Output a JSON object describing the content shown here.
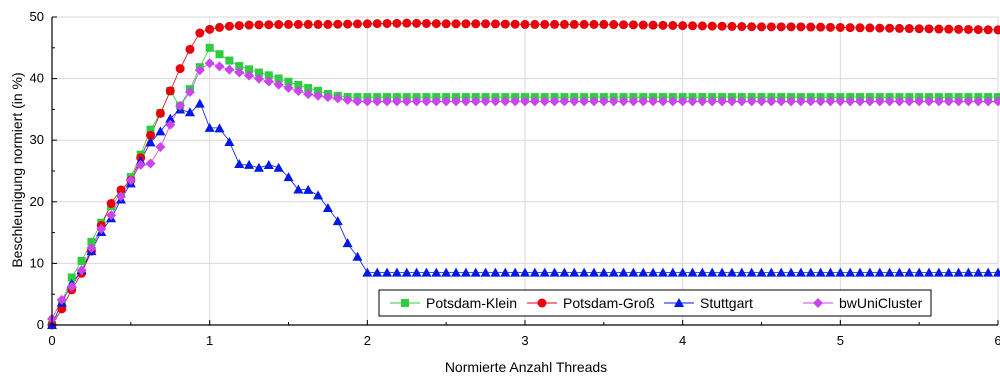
{
  "chart_data": {
    "type": "line",
    "xlabel": "Normierte Anzahl Threads",
    "ylabel": "Beschleunigung normiert (in %)",
    "xlim": [
      0,
      6
    ],
    "ylim": [
      0,
      50
    ],
    "x_ticks": [
      "0",
      "1",
      "2",
      "3",
      "4",
      "5",
      "6"
    ],
    "y_ticks": [
      "0",
      "10",
      "20",
      "30",
      "40",
      "50"
    ],
    "grid": true,
    "legend_position": "bottom-right",
    "series": [
      {
        "name": "Potsdam-Klein",
        "color": "#2ecc40",
        "marker": "square",
        "x": [
          0,
          0.06,
          0.12,
          0.19,
          0.25,
          0.31,
          0.38,
          0.44,
          0.5,
          0.56,
          0.62,
          0.69,
          0.75,
          0.81,
          0.88,
          0.94,
          1.0,
          1.06,
          1.12,
          1.19,
          1.25,
          1.31,
          1.38,
          1.44,
          1.5,
          1.56,
          1.62,
          1.69,
          1.75,
          1.81,
          1.88,
          1.94,
          2.0,
          2.25,
          2.5,
          2.75,
          3.0,
          3.25,
          3.5,
          3.75,
          4.0,
          4.25,
          4.5,
          4.75,
          5.0,
          5.25,
          5.5,
          5.75,
          6.0
        ],
        "y": [
          0,
          3.5,
          7.5,
          10.5,
          13.5,
          16.5,
          19.5,
          21.5,
          24,
          27.5,
          31.5,
          34.5,
          38,
          35.5,
          38.5,
          42,
          45,
          44,
          43,
          42,
          41.5,
          41,
          40.5,
          40,
          39.5,
          39,
          38.5,
          38,
          37.5,
          37.2,
          37,
          37,
          37,
          37,
          37,
          37,
          37,
          37,
          37,
          37,
          37,
          37,
          37,
          37,
          37,
          37,
          37,
          37,
          37
        ]
      },
      {
        "name": "Potsdam-Groß",
        "color": "#e8000b",
        "marker": "circle",
        "x": [
          0,
          0.06,
          0.12,
          0.19,
          0.25,
          0.31,
          0.38,
          0.44,
          0.5,
          0.56,
          0.62,
          0.69,
          0.75,
          0.81,
          0.88,
          0.94,
          1.0,
          1.06,
          1.12,
          1.25,
          1.5,
          1.75,
          2.0,
          2.25,
          2.5,
          2.75,
          3.0,
          3.25,
          3.5,
          3.75,
          4.0,
          4.25,
          4.5,
          4.75,
          5.0,
          5.25,
          5.5,
          5.75,
          6.0
        ],
        "y": [
          0,
          2.5,
          5.5,
          8.5,
          12,
          16,
          20,
          22,
          23.5,
          27,
          30.5,
          34.5,
          38,
          41.5,
          45,
          47.5,
          48,
          48.3,
          48.5,
          48.7,
          48.8,
          48.8,
          48.9,
          49,
          48.9,
          48.9,
          48.8,
          48.8,
          48.8,
          48.7,
          48.6,
          48.5,
          48.4,
          48.4,
          48.3,
          48.2,
          48.1,
          48,
          47.9
        ]
      },
      {
        "name": "Stuttgart",
        "color": "#0019e6",
        "marker": "triangle",
        "x": [
          0,
          0.06,
          0.12,
          0.19,
          0.25,
          0.31,
          0.38,
          0.44,
          0.5,
          0.56,
          0.62,
          0.69,
          0.75,
          0.81,
          0.88,
          0.94,
          1.0,
          1.06,
          1.12,
          1.19,
          1.25,
          1.31,
          1.38,
          1.44,
          1.5,
          1.56,
          1.62,
          1.69,
          1.75,
          1.81,
          1.88,
          1.94,
          2.0,
          2.25,
          2.5,
          2.75,
          3.0,
          3.25,
          3.5,
          3.75,
          4.0,
          4.25,
          4.5,
          4.75,
          5.0,
          5.25,
          5.5,
          5.75,
          6.0
        ],
        "y": [
          0,
          3.5,
          6.5,
          9,
          12,
          15,
          17.5,
          20.5,
          23,
          26.5,
          29.5,
          31.5,
          33.5,
          35,
          34.5,
          36,
          32,
          32,
          30,
          26,
          26,
          25.5,
          26,
          25.5,
          24,
          22,
          22,
          21,
          19,
          17,
          13,
          11,
          8.5,
          8.5,
          8.5,
          8.5,
          8.5,
          8.5,
          8.5,
          8.5,
          8.5,
          8.5,
          8.5,
          8.5,
          8.5,
          8.5,
          8.5,
          8.5,
          8.5
        ]
      },
      {
        "name": "bwUniCluster",
        "color": "#cc44ee",
        "marker": "diamond",
        "x": [
          0,
          0.06,
          0.12,
          0.19,
          0.25,
          0.31,
          0.38,
          0.44,
          0.5,
          0.56,
          0.62,
          0.69,
          0.75,
          0.81,
          0.88,
          0.94,
          1.0,
          1.06,
          1.12,
          1.19,
          1.25,
          1.31,
          1.38,
          1.44,
          1.5,
          1.56,
          1.62,
          1.69,
          1.75,
          1.81,
          1.88,
          1.94,
          2.0,
          2.25,
          2.5,
          2.75,
          3.0,
          3.25,
          3.5,
          3.75,
          4.0,
          4.25,
          4.5,
          4.75,
          5.0,
          5.25,
          5.5,
          5.75,
          6.0
        ],
        "y": [
          1,
          4,
          6,
          9,
          12.5,
          15.5,
          18,
          21,
          23.5,
          26,
          26,
          29,
          32.5,
          35.5,
          38,
          41.5,
          42.5,
          42,
          41.5,
          41,
          40.5,
          40,
          39.5,
          39,
          38.5,
          38,
          37.5,
          37.2,
          37,
          36.8,
          36.5,
          36.3,
          36.3,
          36.3,
          36.3,
          36.3,
          36.3,
          36.3,
          36.3,
          36.3,
          36.3,
          36.3,
          36.3,
          36.3,
          36.3,
          36.3,
          36.3,
          36.3,
          36.3
        ]
      }
    ]
  }
}
